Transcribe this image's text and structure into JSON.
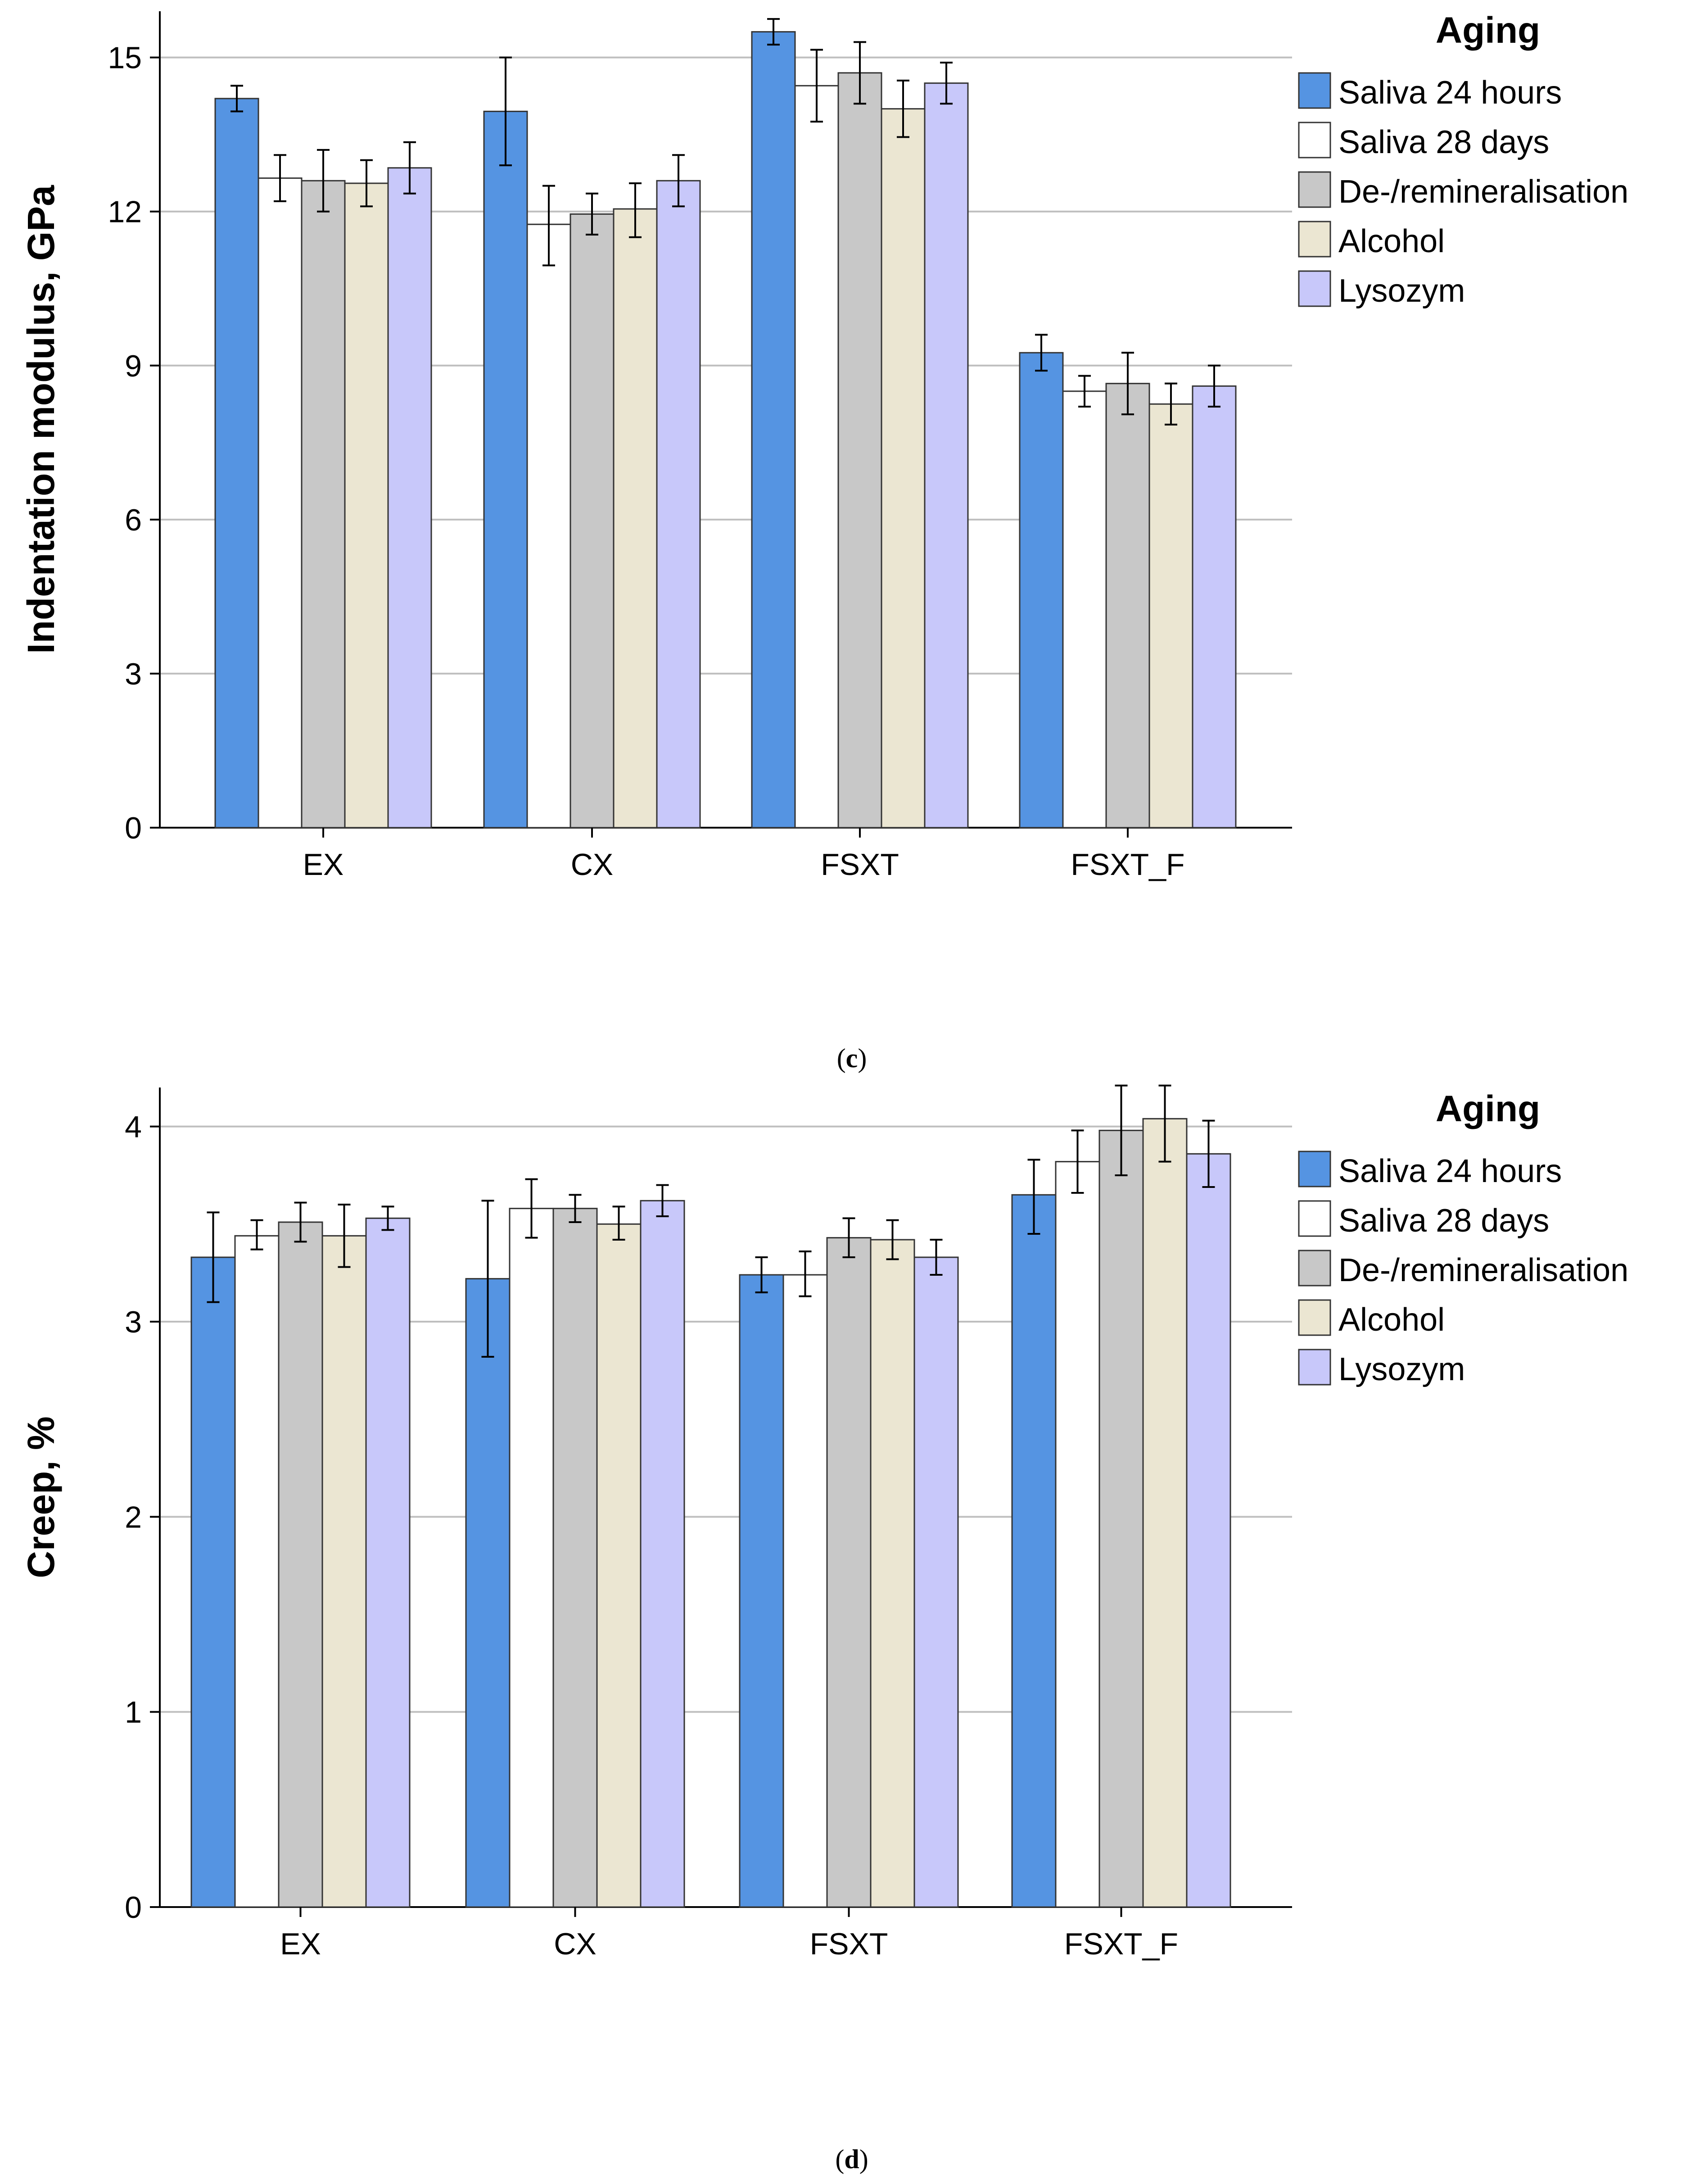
{
  "colors": {
    "saliva_24h": "#5594e2",
    "saliva_28d": "#ffffff",
    "de_remin": "#c8c8c8",
    "alcohol": "#ebe6d2",
    "lysozym": "#c8c8fa",
    "grid": "#bfbfbf",
    "axis": "#000000"
  },
  "chart_data": [
    {
      "id": "c",
      "type": "bar",
      "caption_label": "c",
      "ylabel": "Indentation modulus, GPa",
      "xlabel": "",
      "ylim": [
        0,
        15.9
      ],
      "yticks": [
        0,
        3,
        6,
        9,
        12,
        15
      ],
      "grid": true,
      "legend_title": "Aging",
      "legend_position": "right",
      "categories": [
        "EX",
        "CX",
        "FSXT",
        "FSXT_F"
      ],
      "series": [
        {
          "name": "Saliva 24 hours",
          "color_key": "saliva_24h",
          "values": [
            14.2,
            13.95,
            15.5,
            9.25
          ],
          "err_low": [
            13.95,
            12.9,
            15.25,
            8.9
          ],
          "err_high": [
            14.45,
            15.0,
            15.75,
            9.6
          ]
        },
        {
          "name": "Saliva 28 days",
          "color_key": "saliva_28d",
          "values": [
            12.65,
            11.75,
            14.45,
            8.5
          ],
          "err_low": [
            12.2,
            10.95,
            13.75,
            8.2
          ],
          "err_high": [
            13.1,
            12.5,
            15.15,
            8.8
          ]
        },
        {
          "name": "De-/remineralisation",
          "color_key": "de_remin",
          "values": [
            12.6,
            11.95,
            14.7,
            8.65
          ],
          "err_low": [
            12.0,
            11.55,
            14.1,
            8.05
          ],
          "err_high": [
            13.2,
            12.35,
            15.3,
            9.25
          ]
        },
        {
          "name": "Alcohol",
          "color_key": "alcohol",
          "values": [
            12.55,
            12.05,
            14.0,
            8.25
          ],
          "err_low": [
            12.1,
            11.5,
            13.45,
            7.85
          ],
          "err_high": [
            13.0,
            12.55,
            14.55,
            8.65
          ]
        },
        {
          "name": "Lysozym",
          "color_key": "lysozym",
          "values": [
            12.85,
            12.6,
            14.5,
            8.6
          ],
          "err_low": [
            12.35,
            12.1,
            14.1,
            8.2
          ],
          "err_high": [
            13.35,
            13.1,
            14.9,
            9.0
          ]
        }
      ]
    },
    {
      "id": "d",
      "type": "bar",
      "caption_label": "d",
      "ylabel": "Creep, %",
      "xlabel": "",
      "ylim": [
        0,
        4.2
      ],
      "yticks": [
        0,
        1,
        2,
        3,
        4
      ],
      "grid": true,
      "legend_title": "Aging",
      "legend_position": "right",
      "categories": [
        "EX",
        "CX",
        "FSXT",
        "FSXT_F"
      ],
      "series": [
        {
          "name": "Saliva 24 hours",
          "color_key": "saliva_24h",
          "values": [
            3.33,
            3.22,
            3.24,
            3.65
          ],
          "err_low": [
            3.1,
            2.82,
            3.15,
            3.45
          ],
          "err_high": [
            3.56,
            3.62,
            3.33,
            3.83
          ]
        },
        {
          "name": "Saliva 28 days",
          "color_key": "saliva_28d",
          "values": [
            3.44,
            3.58,
            3.24,
            3.82
          ],
          "err_low": [
            3.37,
            3.43,
            3.13,
            3.66
          ],
          "err_high": [
            3.52,
            3.73,
            3.36,
            3.98
          ]
        },
        {
          "name": "De-/remineralisation",
          "color_key": "de_remin",
          "values": [
            3.51,
            3.58,
            3.43,
            3.98
          ],
          "err_low": [
            3.41,
            3.51,
            3.33,
            3.75
          ],
          "err_high": [
            3.61,
            3.65,
            3.53,
            4.21
          ]
        },
        {
          "name": "Alcohol",
          "color_key": "alcohol",
          "values": [
            3.44,
            3.5,
            3.42,
            4.04
          ],
          "err_low": [
            3.28,
            3.42,
            3.32,
            3.82
          ],
          "err_high": [
            3.6,
            3.59,
            3.52,
            4.21
          ]
        },
        {
          "name": "Lysozym",
          "color_key": "lysozym",
          "values": [
            3.53,
            3.62,
            3.33,
            3.86
          ],
          "err_low": [
            3.47,
            3.54,
            3.24,
            3.69
          ],
          "err_high": [
            3.59,
            3.7,
            3.42,
            4.03
          ]
        }
      ]
    }
  ]
}
